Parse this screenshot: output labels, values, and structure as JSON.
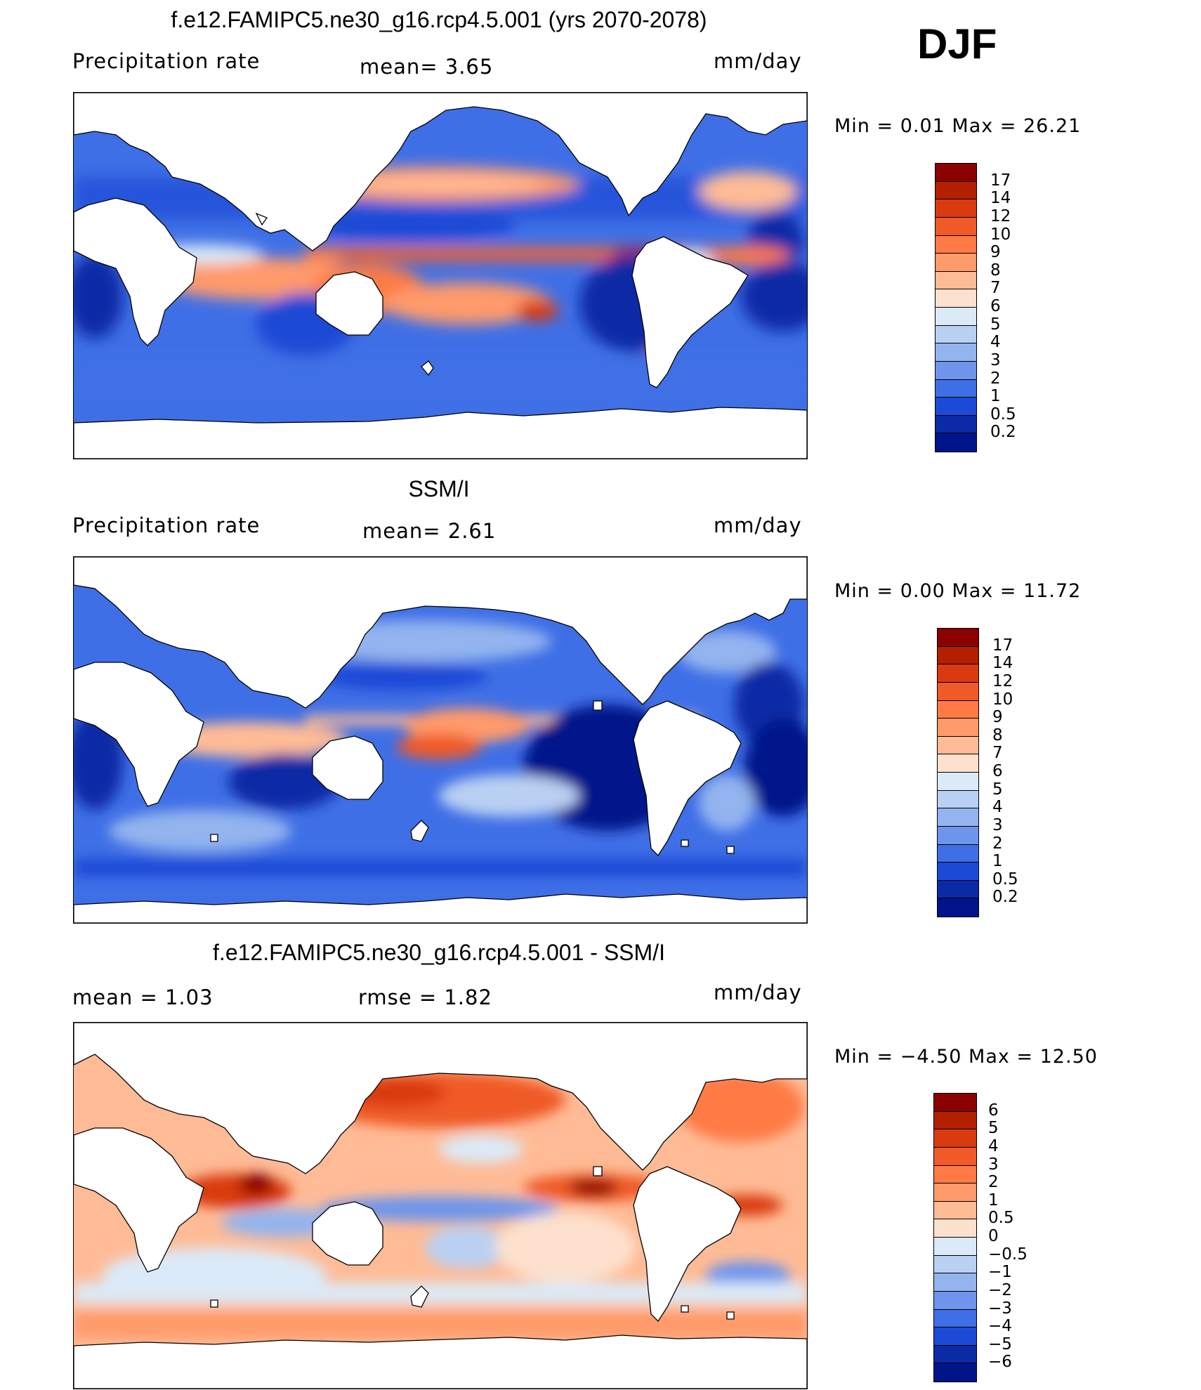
{
  "season": "DJF",
  "panels": [
    {
      "title": "f.e12.FAMIPC5.ne30_g16.rcp4.5.001 (yrs 2070-2078)",
      "left_text": "Precipitation  rate",
      "center_text": "mean=    3.65",
      "right_text": "mm/day",
      "minmax": "Min  =     0.01  Max  =     26.21",
      "colorbar_labels": [
        "17",
        "14",
        "12",
        "10",
        "9",
        "8",
        "7",
        "6",
        "5",
        "4",
        "3",
        "2",
        "1",
        "0.5",
        "0.2"
      ],
      "colorbar_colors": [
        "#8b0000",
        "#b22000",
        "#d93a10",
        "#f05a28",
        "#ff7a45",
        "#ff9a6a",
        "#ffbb96",
        "#fde1ce",
        "#dbeaf8",
        "#b9d0f3",
        "#93b4ef",
        "#6e94ec",
        "#3f6fe6",
        "#1c49d6",
        "#0a2aa6",
        "#00148a"
      ],
      "map_style": "precip"
    },
    {
      "title": "SSM/I",
      "left_text": "Precipitation  rate",
      "center_text": "mean=    2.61",
      "right_text": "mm/day",
      "minmax": "Min  =     0.00  Max  =     11.72",
      "colorbar_labels": [
        "17",
        "14",
        "12",
        "10",
        "9",
        "8",
        "7",
        "6",
        "5",
        "4",
        "3",
        "2",
        "1",
        "0.5",
        "0.2"
      ],
      "colorbar_colors": [
        "#8b0000",
        "#b22000",
        "#d93a10",
        "#f05a28",
        "#ff7a45",
        "#ff9a6a",
        "#ffbb96",
        "#fde1ce",
        "#dbeaf8",
        "#b9d0f3",
        "#93b4ef",
        "#6e94ec",
        "#3f6fe6",
        "#1c49d6",
        "#0a2aa6",
        "#00148a"
      ],
      "map_style": "obs"
    },
    {
      "title": "f.e12.FAMIPC5.ne30_g16.rcp4.5.001 - SSM/I",
      "left_text": "mean  =      1.03",
      "center_text": "rmse  =      1.82",
      "right_text": "mm/day",
      "minmax": "Min  =    −4.50  Max  =     12.50",
      "colorbar_labels": [
        "6",
        "5",
        "4",
        "3",
        "2",
        "1",
        "0.5",
        "0",
        "−0.5",
        "−1",
        "−2",
        "−3",
        "−4",
        "−5",
        "−6"
      ],
      "colorbar_colors": [
        "#8b0000",
        "#b22000",
        "#d93a10",
        "#f05a28",
        "#ff7a45",
        "#ff9a6a",
        "#ffbb96",
        "#fde1ce",
        "#dbeaf8",
        "#b9d0f3",
        "#93b4ef",
        "#6e94ec",
        "#3f6fe6",
        "#1c49d6",
        "#0a2aa6",
        "#00148a"
      ],
      "map_style": "diff"
    }
  ]
}
